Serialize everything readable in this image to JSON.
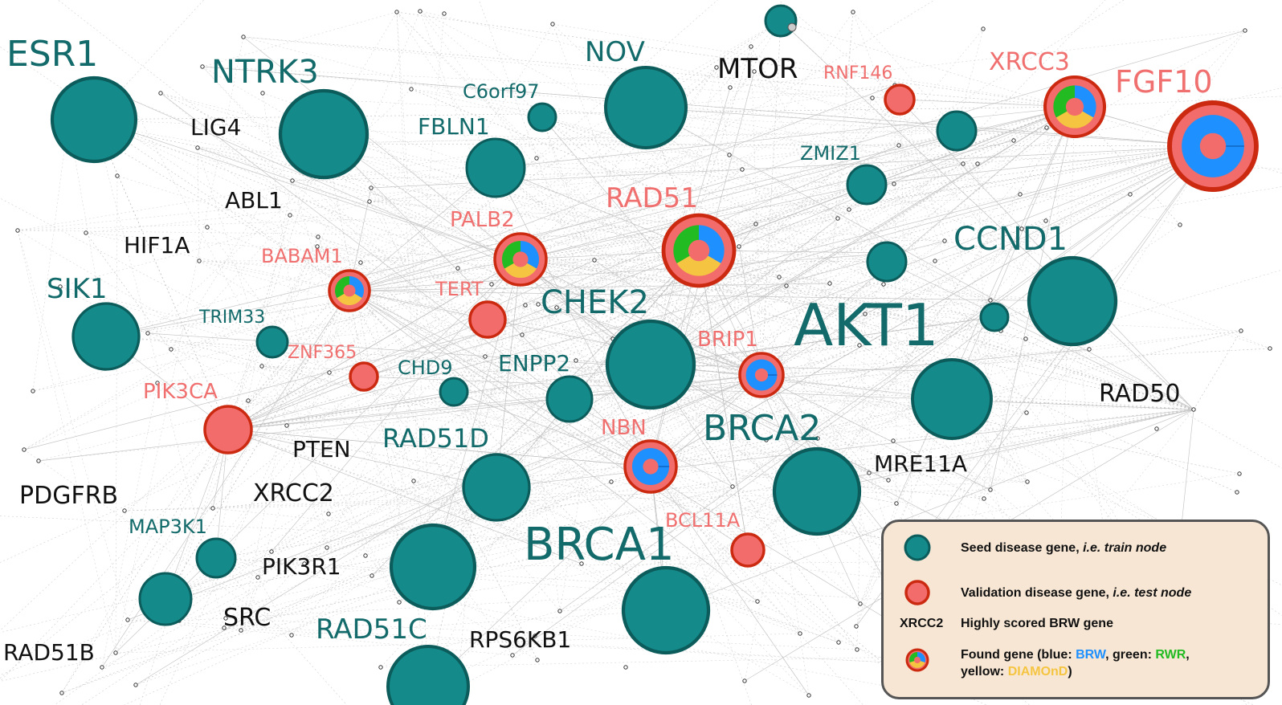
{
  "colors": {
    "seed_fill": "#158a8a",
    "seed_stroke": "#0c5c5c",
    "test_fill": "#f26c6c",
    "test_stroke": "#cc2a10",
    "seed_label": "#136a6a",
    "test_label": "#f07070",
    "brw_label": "#111111",
    "brw_blue": "#1e90ff",
    "rwr_green": "#22bb22",
    "diamond_yellow": "#f5c542"
  },
  "labels": {
    "seed": [
      "ESR1",
      "NTRK3",
      "NOV",
      "C6orf97",
      "FBLN1",
      "ZMIZ1",
      "CCND1",
      "SIK1",
      "TRIM33",
      "CHEK2",
      "AKT1",
      "CHD9",
      "ENPP2",
      "BRCA2",
      "RAD51D",
      "MAP3K1",
      "BRCA1",
      "RAD51C"
    ],
    "test": [
      "RNF146",
      "XRCC3",
      "FGF10",
      "RAD51",
      "PALB2",
      "BABAM1",
      "TERT",
      "BRIP1",
      "ZNF365",
      "PIK3CA",
      "NBN",
      "BCL11A"
    ],
    "brw": [
      "MTOR",
      "LIG4",
      "ABL1",
      "HIF1A",
      "RAD50",
      "PTEN",
      "MRE11A",
      "PDGFRB",
      "XRCC2",
      "PIK3R1",
      "SRC",
      "RAD51B",
      "RPS6KB1"
    ]
  },
  "legend": {
    "seed_text": "Seed disease gene,",
    "seed_italic": " i.e. train node",
    "test_text": "Validation disease gene,",
    "test_italic": " i.e. test node",
    "brw_example": "XRCC2",
    "brw_text": "Highly scored BRW gene",
    "found_text_1": "Found gene (blue: ",
    "found_blue": "BRW",
    "found_text_2": ", green: ",
    "found_green": "RWR",
    "found_text_3": ",",
    "found_text_4": "yellow: ",
    "found_yellow": "DIAMOnD",
    "found_text_5": ")"
  }
}
